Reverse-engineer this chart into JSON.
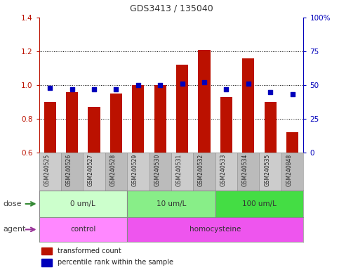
{
  "title": "GDS3413 / 135040",
  "samples": [
    "GSM240525",
    "GSM240526",
    "GSM240527",
    "GSM240528",
    "GSM240529",
    "GSM240530",
    "GSM240531",
    "GSM240532",
    "GSM240533",
    "GSM240534",
    "GSM240535",
    "GSM240848"
  ],
  "red_values": [
    0.9,
    0.96,
    0.87,
    0.95,
    1.0,
    1.0,
    1.12,
    1.21,
    0.93,
    1.16,
    0.9,
    0.72
  ],
  "blue_values": [
    48,
    47,
    47,
    47,
    50,
    50,
    51,
    52,
    47,
    51,
    45,
    43
  ],
  "ylim_left": [
    0.6,
    1.4
  ],
  "ylim_right": [
    0,
    100
  ],
  "yticks_left": [
    0.6,
    0.8,
    1.0,
    1.2,
    1.4
  ],
  "yticks_right": [
    0,
    25,
    50,
    75,
    100
  ],
  "ytick_labels_right": [
    "0",
    "25",
    "50",
    "75",
    "100%"
  ],
  "red_color": "#BB1100",
  "blue_color": "#0000BB",
  "bar_width": 0.55,
  "dose_groups": [
    {
      "label": "0 um/L",
      "start": 0,
      "end": 4,
      "color": "#CCFFCC"
    },
    {
      "label": "10 um/L",
      "start": 4,
      "end": 8,
      "color": "#88EE88"
    },
    {
      "label": "100 um/L",
      "start": 8,
      "end": 12,
      "color": "#44DD44"
    }
  ],
  "agent_groups": [
    {
      "label": "control",
      "start": 0,
      "end": 4,
      "color": "#FF88FF"
    },
    {
      "label": "homocysteine",
      "start": 4,
      "end": 12,
      "color": "#EE55EE"
    }
  ],
  "dose_label": "dose",
  "agent_label": "agent",
  "legend_red": "transformed count",
  "legend_blue": "percentile rank within the sample",
  "background_color": "#FFFFFF",
  "label_bg_color": "#CCCCCC",
  "label_bg_alt": "#BBBBBB",
  "grid_color": "#000000"
}
